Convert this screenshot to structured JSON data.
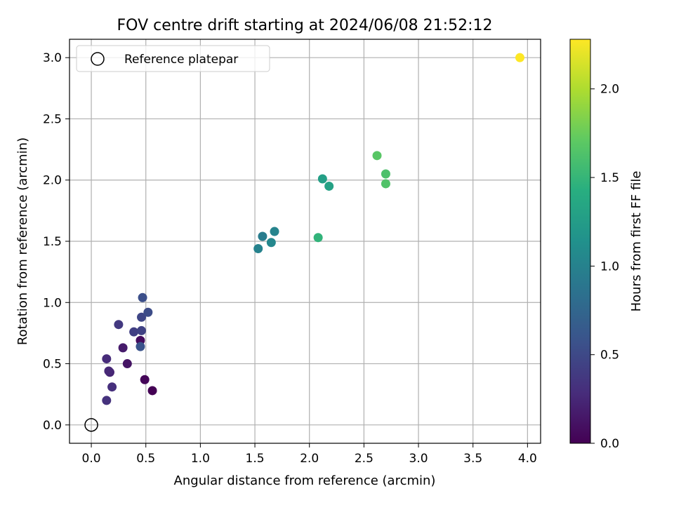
{
  "chart_data": {
    "type": "scatter",
    "title": "FOV centre drift starting at 2024/06/08 21:52:12",
    "xlabel": "Angular distance from reference (arcmin)",
    "ylabel": "Rotation from reference (arcmin)",
    "xlim": [
      -0.2,
      4.12
    ],
    "ylim": [
      -0.15,
      3.15
    ],
    "xticks": [
      0.0,
      0.5,
      1.0,
      1.5,
      2.0,
      2.5,
      3.0,
      3.5,
      4.0
    ],
    "xtick_labels": [
      "0.0",
      "0.5",
      "1.0",
      "1.5",
      "2.0",
      "2.5",
      "3.0",
      "3.5",
      "4.0"
    ],
    "yticks": [
      0.0,
      0.5,
      1.0,
      1.5,
      2.0,
      2.5,
      3.0
    ],
    "ytick_labels": [
      "0.0",
      "0.5",
      "1.0",
      "1.5",
      "2.0",
      "2.5",
      "3.0"
    ],
    "grid": true,
    "legend": {
      "placement": "top-left",
      "entries": [
        "Reference platepar"
      ]
    },
    "reference_point": {
      "x": 0.0,
      "y": 0.0
    },
    "colorbar": {
      "label": "Hours from first FF file",
      "colormap": "viridis",
      "range": [
        0.0,
        2.28
      ],
      "ticks": [
        0.0,
        0.5,
        1.0,
        1.5,
        2.0
      ],
      "tick_labels": [
        "0.0",
        "0.5",
        "1.0",
        "1.5",
        "2.0"
      ]
    },
    "points": [
      {
        "x": 0.56,
        "y": 0.28,
        "hours": 0.0
      },
      {
        "x": 0.49,
        "y": 0.37,
        "hours": 0.03
      },
      {
        "x": 0.45,
        "y": 0.69,
        "hours": 0.07
      },
      {
        "x": 0.33,
        "y": 0.5,
        "hours": 0.12
      },
      {
        "x": 0.29,
        "y": 0.63,
        "hours": 0.17
      },
      {
        "x": 0.17,
        "y": 0.43,
        "hours": 0.22
      },
      {
        "x": 0.16,
        "y": 0.44,
        "hours": 0.25
      },
      {
        "x": 0.14,
        "y": 0.54,
        "hours": 0.28
      },
      {
        "x": 0.19,
        "y": 0.31,
        "hours": 0.3
      },
      {
        "x": 0.14,
        "y": 0.2,
        "hours": 0.32
      },
      {
        "x": 0.25,
        "y": 0.82,
        "hours": 0.38
      },
      {
        "x": 0.39,
        "y": 0.76,
        "hours": 0.42
      },
      {
        "x": 0.46,
        "y": 0.77,
        "hours": 0.45
      },
      {
        "x": 0.46,
        "y": 0.88,
        "hours": 0.48
      },
      {
        "x": 0.52,
        "y": 0.92,
        "hours": 0.52
      },
      {
        "x": 0.47,
        "y": 1.04,
        "hours": 0.55
      },
      {
        "x": 0.45,
        "y": 0.64,
        "hours": 0.58
      },
      {
        "x": 1.57,
        "y": 1.54,
        "hours": 0.95
      },
      {
        "x": 1.53,
        "y": 1.44,
        "hours": 1.0
      },
      {
        "x": 1.68,
        "y": 1.58,
        "hours": 1.02
      },
      {
        "x": 1.65,
        "y": 1.49,
        "hours": 1.05
      },
      {
        "x": 2.12,
        "y": 2.01,
        "hours": 1.28
      },
      {
        "x": 2.18,
        "y": 1.95,
        "hours": 1.3
      },
      {
        "x": 2.08,
        "y": 1.53,
        "hours": 1.48
      },
      {
        "x": 2.7,
        "y": 2.05,
        "hours": 1.62
      },
      {
        "x": 2.7,
        "y": 1.97,
        "hours": 1.64
      },
      {
        "x": 2.62,
        "y": 2.2,
        "hours": 1.68
      },
      {
        "x": 3.93,
        "y": 3.0,
        "hours": 2.28
      }
    ]
  }
}
